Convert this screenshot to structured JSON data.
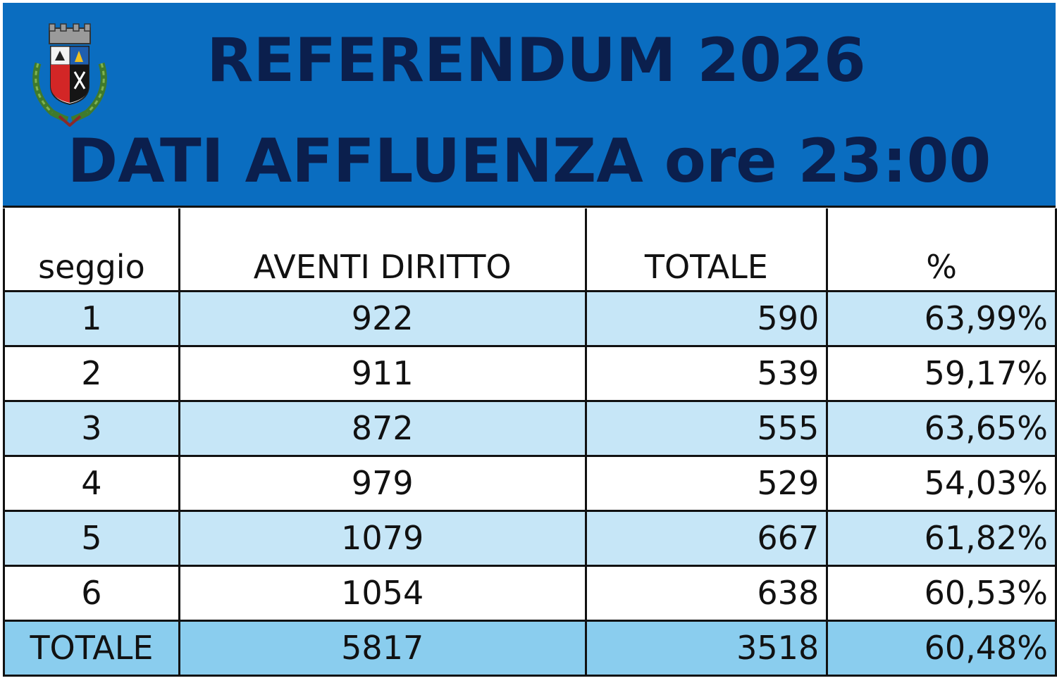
{
  "header": {
    "title": "REFERENDUM 2026",
    "subtitle": "DATI AFFLUENZA ore 23:00",
    "crest_icon": "municipal-coat-of-arms-icon"
  },
  "colors": {
    "banner": "#0a6dc0",
    "title_text": "#0b1f4d",
    "row_light": "#c6e6f7",
    "row_total": "#8acdee"
  },
  "table": {
    "columns": [
      "seggio",
      "AVENTI DIRITTO",
      "TOTALE",
      "%"
    ],
    "rows": [
      {
        "seggio": "1",
        "aventi": "922",
        "totale": "590",
        "pct": "63,99%"
      },
      {
        "seggio": "2",
        "aventi": "911",
        "totale": "539",
        "pct": "59,17%"
      },
      {
        "seggio": "3",
        "aventi": "872",
        "totale": "555",
        "pct": "63,65%"
      },
      {
        "seggio": "4",
        "aventi": "979",
        "totale": "529",
        "pct": "54,03%"
      },
      {
        "seggio": "5",
        "aventi": "1079",
        "totale": "667",
        "pct": "61,82%"
      },
      {
        "seggio": "6",
        "aventi": "1054",
        "totale": "638",
        "pct": "60,53%"
      }
    ],
    "total": {
      "seggio": "TOTALE",
      "aventi": "5817",
      "totale": "3518",
      "pct": "60,48%"
    }
  }
}
